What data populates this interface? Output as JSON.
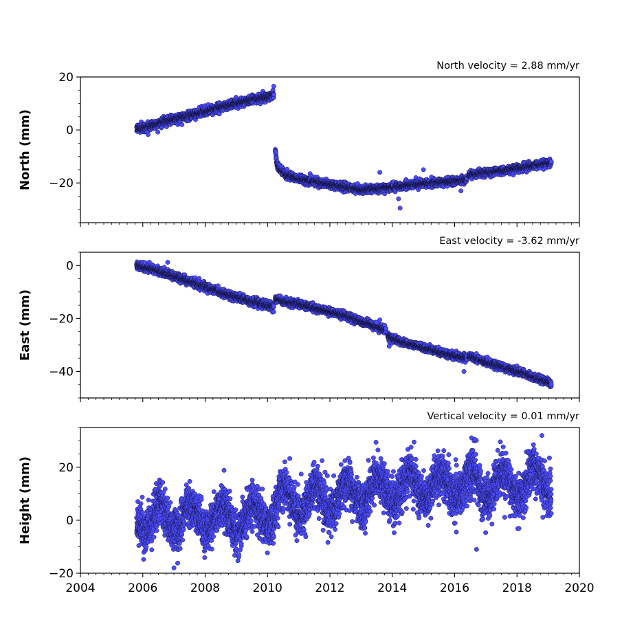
{
  "chart_data": [
    {
      "type": "scatter",
      "title": "North velocity = 2.88 mm/yr",
      "ylabel": "North (mm)",
      "xlim": [
        2004,
        2020
      ],
      "ylim": [
        -35,
        20
      ],
      "yticks": [
        -20,
        0,
        20
      ],
      "marker_color": "#4b4bff",
      "segments": [
        {
          "x": [
            2005.8,
            2006.0,
            2006.5,
            2007.0,
            2007.5,
            2008.0,
            2008.5,
            2009.0,
            2009.5,
            2010.0,
            2010.2
          ],
          "y": [
            0.5,
            0.8,
            2.5,
            4.0,
            5.5,
            7.0,
            8.5,
            10.0,
            11.5,
            12.5,
            13.5
          ],
          "noise": 1.4
        },
        {
          "x": [
            2010.25,
            2010.3,
            2010.4,
            2010.6,
            2011.0,
            2011.5,
            2012.0,
            2012.5,
            2013.0,
            2013.5,
            2014.0,
            2014.5,
            2015.0,
            2015.5,
            2016.0,
            2016.4
          ],
          "y": [
            -7.5,
            -12.5,
            -15.0,
            -17.0,
            -18.5,
            -19.5,
            -20.5,
            -21.5,
            -22.5,
            -22.2,
            -21.5,
            -21.0,
            -20.2,
            -19.8,
            -19.2,
            -18.8
          ],
          "noise": 1.3
        },
        {
          "x": [
            2016.45,
            2017.0,
            2017.5,
            2018.0,
            2018.5,
            2019.0,
            2019.1
          ],
          "y": [
            -17.0,
            -16.0,
            -15.5,
            -14.5,
            -13.5,
            -12.5,
            -12.2
          ],
          "noise": 1.2
        }
      ],
      "outliers": [
        {
          "x": 2013.6,
          "y": -16.0
        },
        {
          "x": 2014.2,
          "y": -26.0
        },
        {
          "x": 2014.25,
          "y": -29.5
        },
        {
          "x": 2015.0,
          "y": -15.0
        },
        {
          "x": 2016.2,
          "y": -23.0
        },
        {
          "x": 2010.2,
          "y": 16.5
        }
      ]
    },
    {
      "type": "scatter",
      "title": "East velocity = -3.62 mm/yr",
      "ylabel": "East (mm)",
      "xlim": [
        2004,
        2020
      ],
      "ylim": [
        -50,
        5
      ],
      "yticks": [
        -40,
        -20,
        0
      ],
      "marker_color": "#4b4bff",
      "segments": [
        {
          "x": [
            2005.8,
            2006.5,
            2007.0,
            2007.5,
            2008.0,
            2008.5,
            2009.0,
            2009.5,
            2010.0,
            2010.2
          ],
          "y": [
            0.0,
            -2.0,
            -4.0,
            -6.0,
            -8.0,
            -10.0,
            -12.0,
            -13.5,
            -15.0,
            -15.5
          ],
          "noise": 1.3
        },
        {
          "x": [
            2010.25,
            2010.5,
            2011.0,
            2011.5,
            2012.0,
            2012.5,
            2013.0,
            2013.5,
            2013.8
          ],
          "y": [
            -12.5,
            -13.5,
            -14.5,
            -16.0,
            -17.5,
            -19.0,
            -21.0,
            -23.0,
            -24.5
          ],
          "noise": 1.2
        },
        {
          "x": [
            2013.85,
            2014.0,
            2014.5,
            2015.0,
            2015.5,
            2016.0,
            2016.4
          ],
          "y": [
            -26.5,
            -27.5,
            -29.5,
            -31.0,
            -32.5,
            -34.0,
            -35.0
          ],
          "noise": 1.2
        },
        {
          "x": [
            2016.45,
            2016.7,
            2017.0,
            2017.5,
            2018.0,
            2018.5,
            2019.0,
            2019.1
          ],
          "y": [
            -34.0,
            -35.0,
            -36.5,
            -38.0,
            -40.0,
            -42.0,
            -44.0,
            -44.8
          ],
          "noise": 1.2
        }
      ],
      "outliers": [
        {
          "x": 2013.5,
          "y": -21.5
        },
        {
          "x": 2013.6,
          "y": -20.5
        },
        {
          "x": 2013.9,
          "y": -30.5
        },
        {
          "x": 2016.3,
          "y": -40.0
        },
        {
          "x": 2006.8,
          "y": 1.2
        }
      ]
    },
    {
      "type": "scatter",
      "title": "Vertical velocity = 0.01 mm/yr",
      "ylabel": "Height (mm)",
      "xlim": [
        2004,
        2020
      ],
      "ylim": [
        -20,
        35
      ],
      "yticks": [
        -20,
        0,
        20
      ],
      "xticks": [
        2004,
        2006,
        2008,
        2010,
        2012,
        2014,
        2016,
        2018,
        2020
      ],
      "marker_color": "#4b4bff",
      "seasonal": {
        "amplitude": 5,
        "period_years": 1,
        "noise": 4.2,
        "trend": {
          "x": [
            2005.8,
            2007.0,
            2008.0,
            2009.0,
            2010.0,
            2010.5,
            2011.0,
            2012.0,
            2013.0,
            2014.0,
            2015.0,
            2016.0,
            2017.0,
            2018.0,
            2019.1
          ],
          "y": [
            0.0,
            1.5,
            1.0,
            0.0,
            2.0,
            8.0,
            6.0,
            8.0,
            10.5,
            12.0,
            12.5,
            13.5,
            12.5,
            13.5,
            15.0
          ]
        }
      },
      "outliers": [
        {
          "x": 2016.7,
          "y": -11.0
        },
        {
          "x": 2007.0,
          "y": -18.0
        },
        {
          "x": 2016.65,
          "y": 30.5
        },
        {
          "x": 2018.8,
          "y": 32.0
        },
        {
          "x": 2014.7,
          "y": 29.5
        }
      ]
    }
  ]
}
